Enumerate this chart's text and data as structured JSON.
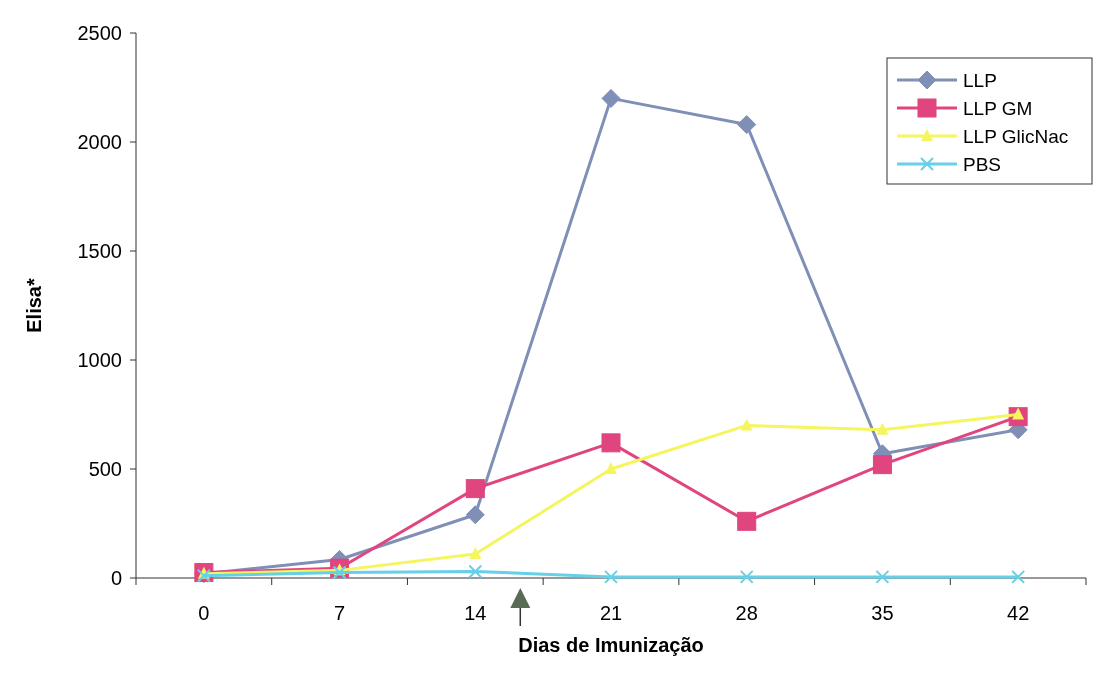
{
  "chart_data": {
    "type": "line",
    "xlabel": "Dias de Imunização",
    "ylabel": "Elisa*",
    "categories": [
      "0",
      "7",
      "14",
      "21",
      "28",
      "35",
      "42"
    ],
    "ylim": [
      0,
      2500
    ],
    "yticks": [
      0,
      500,
      1000,
      1500,
      2000,
      2500
    ],
    "grid": false,
    "legend": "top right",
    "series": [
      {
        "name": "LLP",
        "color": "#7f8fb5",
        "marker": "diamond",
        "values": [
          20,
          85,
          290,
          2200,
          2080,
          570,
          680
        ]
      },
      {
        "name": "LLP GM",
        "color": "#e0457f",
        "marker": "square",
        "values": [
          25,
          45,
          410,
          620,
          260,
          520,
          740
        ]
      },
      {
        "name": "LLP GlicNac",
        "color": "#f5f560",
        "marker": "triangle",
        "values": [
          20,
          35,
          110,
          500,
          700,
          680,
          750
        ]
      },
      {
        "name": "PBS",
        "color": "#66d0e8",
        "marker": "cross",
        "values": [
          10,
          25,
          30,
          5,
          5,
          5,
          5
        ]
      }
    ]
  }
}
